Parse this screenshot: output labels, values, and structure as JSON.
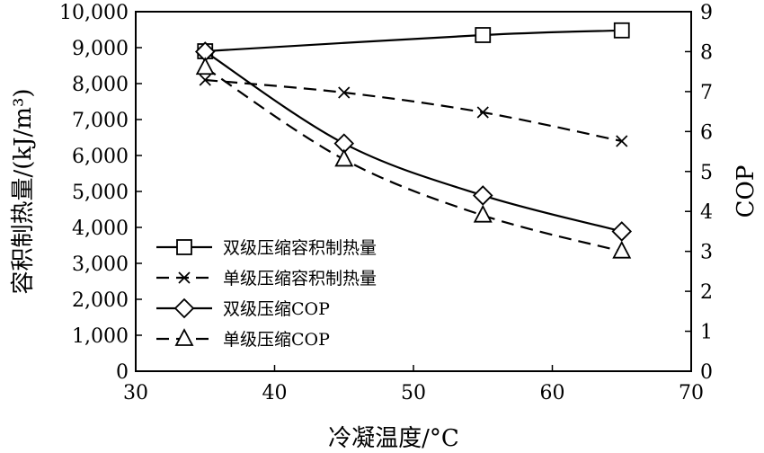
{
  "chart_data": {
    "type": "line",
    "title": "",
    "xlabel": "冷凝温度/°C",
    "ylabel_left": "容积制热量/(kJ/m³)",
    "ylabel_right": "COP",
    "xlim": [
      30,
      70
    ],
    "ylim_left": [
      0,
      10000
    ],
    "ylim_right": [
      0,
      9
    ],
    "x_ticks": [
      "30",
      "40",
      "50",
      "60",
      "70"
    ],
    "y_left_ticks": [
      "0",
      "1,000",
      "2,000",
      "3,000",
      "4,000",
      "5,000",
      "6,000",
      "7,000",
      "8,000",
      "9,000",
      "10,000"
    ],
    "y_right_ticks": [
      "0",
      "1",
      "2",
      "3",
      "4",
      "5",
      "6",
      "7",
      "8",
      "9"
    ],
    "grid": false,
    "legend_position": "center-left",
    "series": [
      {
        "name": "双级压缩容积制热量",
        "axis": "left",
        "line": "solid",
        "marker": "square",
        "x": [
          35,
          55,
          65
        ],
        "values": [
          8900,
          9350,
          9480
        ]
      },
      {
        "name": "单级压缩容积制热量",
        "axis": "left",
        "line": "dashed",
        "marker": "x",
        "x": [
          35,
          45,
          55,
          65
        ],
        "values": [
          8100,
          7750,
          7200,
          6400
        ]
      },
      {
        "name": "双级压缩COP",
        "axis": "right",
        "line": "solid",
        "marker": "diamond",
        "x": [
          35,
          45,
          55,
          65
        ],
        "values": [
          8.0,
          5.7,
          4.4,
          3.5
        ]
      },
      {
        "name": "单级压缩COP",
        "axis": "right",
        "line": "dashed",
        "marker": "triangle",
        "x": [
          35,
          45,
          55,
          65
        ],
        "values": [
          7.6,
          5.3,
          3.9,
          3.0
        ]
      }
    ]
  }
}
